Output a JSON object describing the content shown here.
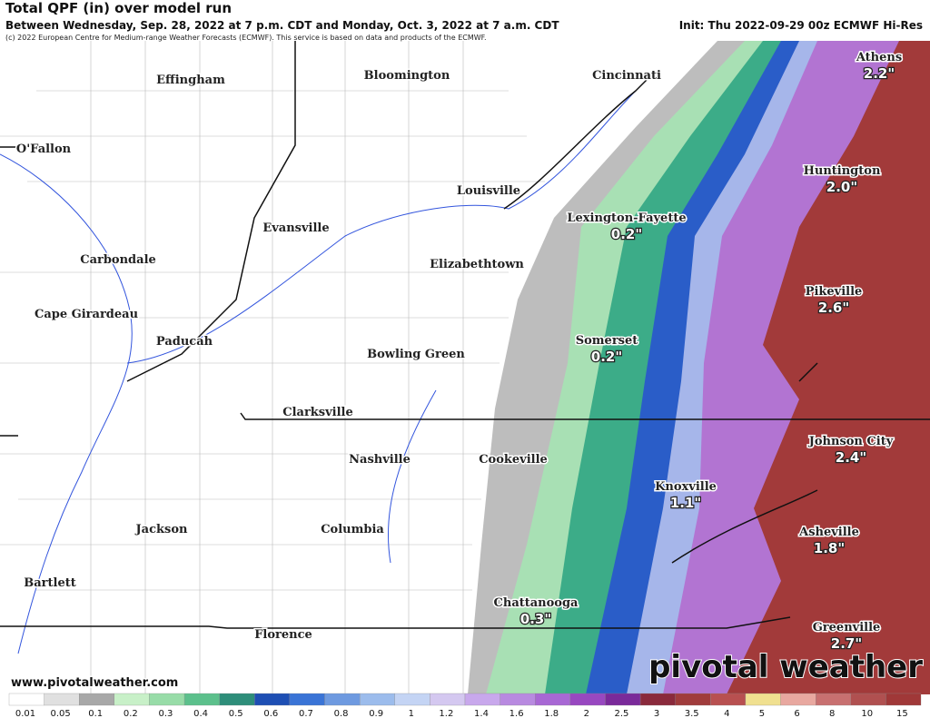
{
  "header": {
    "title": "Total QPF (in) over model run",
    "subtitle": "Between Wednesday, Sep. 28, 2022 at 7 p.m. CDT and Monday, Oct. 3, 2022 at 7 a.m. CDT",
    "init": "Init: Thu 2022-09-29 00z ECMWF Hi-Res",
    "copyright": "(c) 2022 European Centre for Medium-range Weather Forecasts (ECMWF). This service is based on data and products of the ECMWF."
  },
  "cities": [
    {
      "name": "Effingham"
    },
    {
      "name": "Bloomington"
    },
    {
      "name": "Cincinnati"
    },
    {
      "name": "Athens",
      "amount": "2.2\""
    },
    {
      "name": "O'Fallon"
    },
    {
      "name": "Huntington",
      "amount": "2.0\""
    },
    {
      "name": "Louisville"
    },
    {
      "name": "Evansville"
    },
    {
      "name": "Lexington-Fayette",
      "amount": "0.2\""
    },
    {
      "name": "Carbondale"
    },
    {
      "name": "Elizabethtown"
    },
    {
      "name": "Pikeville",
      "amount": "2.6\""
    },
    {
      "name": "Cape Girardeau"
    },
    {
      "name": "Paducah"
    },
    {
      "name": "Somerset",
      "amount": "0.2\""
    },
    {
      "name": "Bowling Green"
    },
    {
      "name": "Clarksville"
    },
    {
      "name": "Johnson City",
      "amount": "2.4\""
    },
    {
      "name": "Nashville"
    },
    {
      "name": "Cookeville"
    },
    {
      "name": "Knoxville",
      "amount": "1.1\""
    },
    {
      "name": "Jackson"
    },
    {
      "name": "Columbia"
    },
    {
      "name": "Asheville",
      "amount": "1.8\""
    },
    {
      "name": "Bartlett"
    },
    {
      "name": "Chattanooga",
      "amount": "0.3\""
    },
    {
      "name": "Florence"
    },
    {
      "name": "Greenville",
      "amount": "2.7\""
    }
  ],
  "website": "www.pivotalweather.com",
  "watermark": "pivotal weather",
  "colorbar": {
    "labels": [
      "0.01",
      "0.05",
      "0.1",
      "0.2",
      "0.3",
      "0.4",
      "0.5",
      "0.6",
      "0.7",
      "0.8",
      "0.9",
      "1",
      "1.2",
      "1.4",
      "1.6",
      "1.8",
      "2",
      "2.5",
      "3",
      "3.5",
      "4",
      "5",
      "6",
      "8",
      "10",
      "15"
    ],
    "colors": [
      "#ffffff",
      "#e0e0e0",
      "#a8a8a8",
      "#c8f0c8",
      "#98dca8",
      "#5cc08c",
      "#2e8e7a",
      "#1e4fb4",
      "#3a74d6",
      "#6e9ae0",
      "#9cbcec",
      "#c4d4f4",
      "#d4c8f0",
      "#c8a8ec",
      "#b88ae0",
      "#a868d4",
      "#9848c0",
      "#7a2a9a",
      "#8a2a3c",
      "#a03c3c",
      "#b85050",
      "#f0e090",
      "#e8a8a0",
      "#c87070",
      "#b05050",
      "#a03838"
    ]
  }
}
